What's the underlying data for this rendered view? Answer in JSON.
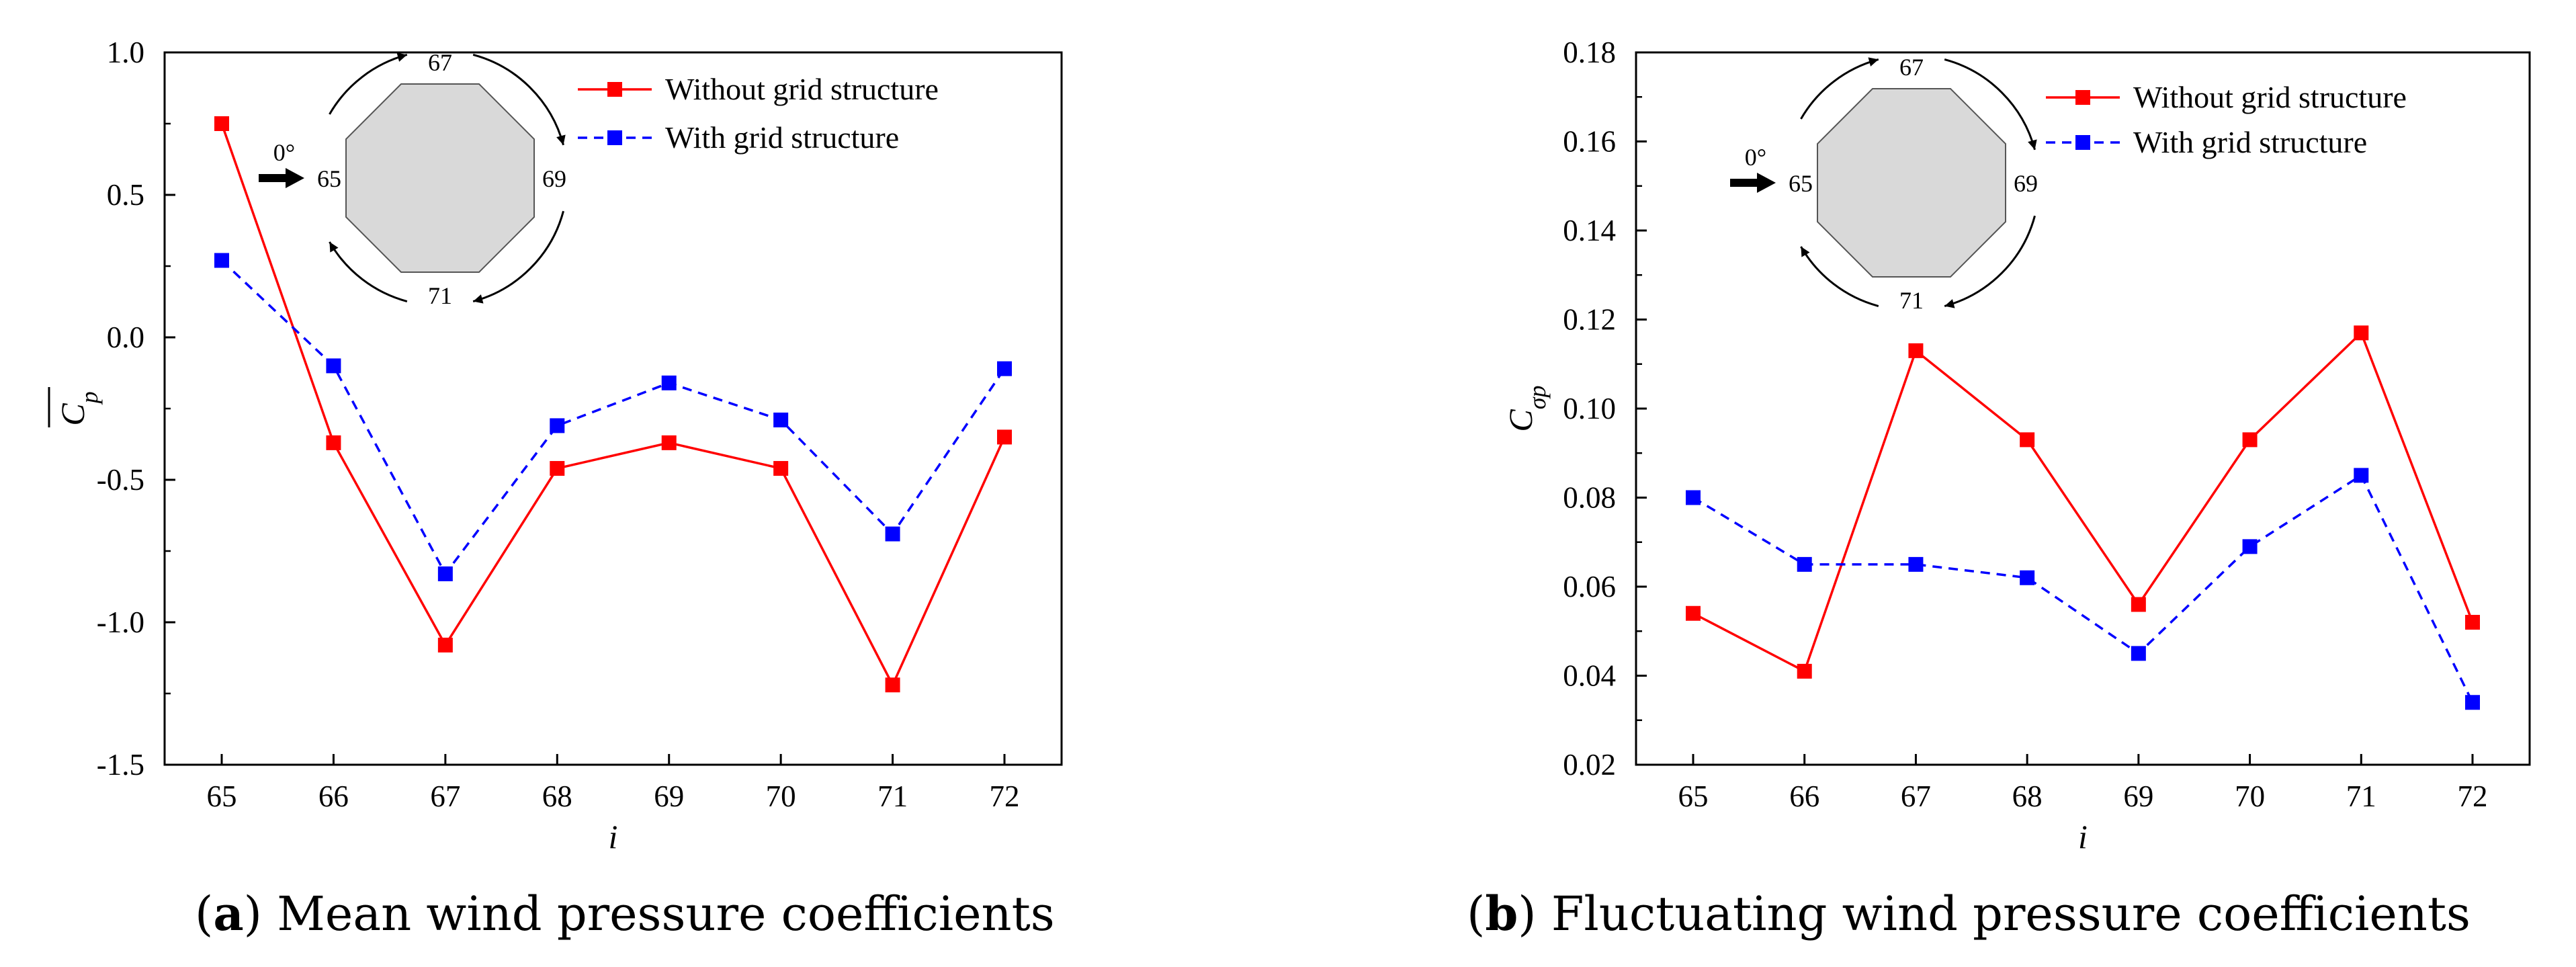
{
  "chart_data": [
    {
      "type": "line",
      "panel_label": "a",
      "caption": "Mean wind pressure coefficients",
      "xlabel": "i",
      "ylabel": "C_p (mean)",
      "ylabel_base": "C",
      "ylabel_sub": "p",
      "categories": [
        65,
        66,
        67,
        68,
        69,
        70,
        71,
        72
      ],
      "xtick_labels": [
        "65",
        "66",
        "67",
        "68",
        "69",
        "70",
        "71",
        "72"
      ],
      "ylim": [
        -1.5,
        1.0
      ],
      "yticks": [
        -1.5,
        -1.0,
        -0.5,
        0.0,
        0.5,
        1.0
      ],
      "ytick_labels": [
        "-1.5",
        "-1.0",
        "-0.5",
        "0.0",
        "0.5",
        "1.0"
      ],
      "series": [
        {
          "name": "Without grid structure",
          "color": "#ff0000",
          "dash": "solid",
          "values": [
            0.75,
            -0.37,
            -1.08,
            -0.46,
            -0.37,
            -0.46,
            -1.22,
            -0.35
          ]
        },
        {
          "name": "With grid structure",
          "color": "#0000ff",
          "dash": "dashed",
          "values": [
            0.27,
            -0.1,
            -0.83,
            -0.31,
            -0.16,
            -0.29,
            -0.69,
            -0.11
          ]
        }
      ],
      "inset": {
        "wind_angle": "0°",
        "labels": [
          "65",
          "67",
          "69",
          "71"
        ]
      }
    },
    {
      "type": "line",
      "panel_label": "b",
      "caption": "Fluctuating wind pressure coefficients",
      "xlabel": "i",
      "ylabel": "C_σp",
      "ylabel_base": "C",
      "ylabel_sub": "σp",
      "categories": [
        65,
        66,
        67,
        68,
        69,
        70,
        71,
        72
      ],
      "xtick_labels": [
        "65",
        "66",
        "67",
        "68",
        "69",
        "70",
        "71",
        "72"
      ],
      "ylim": [
        0.02,
        0.18
      ],
      "yticks": [
        0.02,
        0.04,
        0.06,
        0.08,
        0.1,
        0.12,
        0.14,
        0.16,
        0.18
      ],
      "ytick_labels": [
        "0.02",
        "0.04",
        "0.06",
        "0.08",
        "0.10",
        "0.12",
        "0.14",
        "0.16",
        "0.18"
      ],
      "series": [
        {
          "name": "Without grid structure",
          "color": "#ff0000",
          "dash": "solid",
          "values": [
            0.054,
            0.041,
            0.113,
            0.093,
            0.056,
            0.093,
            0.117,
            0.052
          ]
        },
        {
          "name": "With grid structure",
          "color": "#0000ff",
          "dash": "dashed",
          "values": [
            0.08,
            0.065,
            0.065,
            0.062,
            0.045,
            0.069,
            0.085,
            0.034
          ]
        }
      ],
      "inset": {
        "wind_angle": "0°",
        "labels": [
          "65",
          "67",
          "69",
          "71"
        ]
      }
    }
  ]
}
